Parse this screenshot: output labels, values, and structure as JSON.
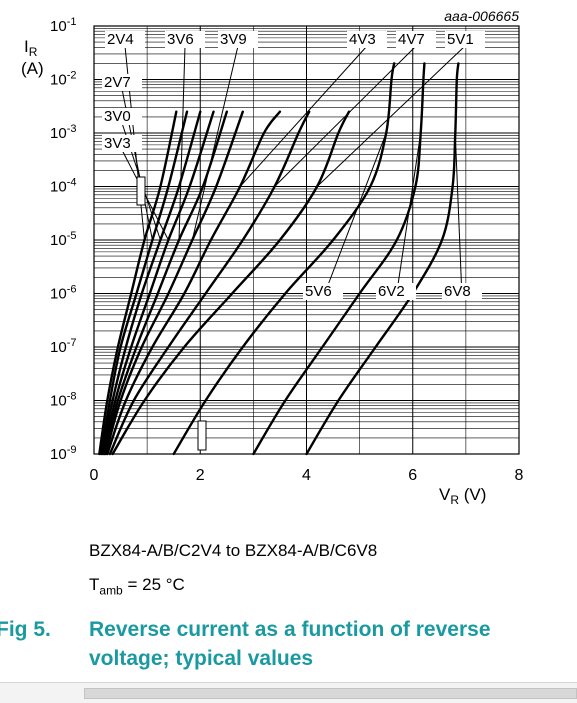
{
  "chart_data": {
    "type": "line",
    "title": "",
    "code": "aaa-006665",
    "ylabel_main": "I",
    "ylabel_sub": "R",
    "ylabel_unit": "(A)",
    "xlabel_main": "V",
    "xlabel_sub": "R",
    "xlabel_unit": " (V)",
    "xlim": [
      0,
      8
    ],
    "ylog": true,
    "ylim": [
      1e-09,
      0.1
    ],
    "xticks": [
      "0",
      "2",
      "4",
      "6",
      "8"
    ],
    "yticks": [
      {
        "base": "10",
        "exp": "-1"
      },
      {
        "base": "10",
        "exp": "-2"
      },
      {
        "base": "10",
        "exp": "-3"
      },
      {
        "base": "10",
        "exp": "-4"
      },
      {
        "base": "10",
        "exp": "-5"
      },
      {
        "base": "10",
        "exp": "-6"
      },
      {
        "base": "10",
        "exp": "-7"
      },
      {
        "base": "10",
        "exp": "-8"
      },
      {
        "base": "10",
        "exp": "-9"
      }
    ],
    "grid": true,
    "series": [
      {
        "name": "2V4",
        "x": [
          0.1,
          0.25,
          0.45,
          0.7,
          0.95,
          1.25,
          1.55
        ],
        "y": [
          1e-09,
          1e-08,
          1e-07,
          1e-06,
          1e-05,
          0.0001,
          0.0025
        ]
      },
      {
        "name": "2V7",
        "x": [
          0.13,
          0.3,
          0.5,
          0.8,
          1.1,
          1.4,
          1.75
        ],
        "y": [
          1e-09,
          1e-08,
          1e-07,
          1e-06,
          1e-05,
          0.0001,
          0.0025
        ]
      },
      {
        "name": "3V0",
        "x": [
          0.15,
          0.35,
          0.6,
          0.9,
          1.25,
          1.6,
          2.0
        ],
        "y": [
          1e-09,
          1e-08,
          1e-07,
          1e-06,
          1e-05,
          0.0001,
          0.0025
        ]
      },
      {
        "name": "3V3",
        "x": [
          0.18,
          0.4,
          0.7,
          1.05,
          1.4,
          1.8,
          2.25
        ],
        "y": [
          1e-09,
          1e-08,
          1e-07,
          1e-06,
          1e-05,
          0.0001,
          0.0025
        ]
      },
      {
        "name": "3V6",
        "x": [
          0.2,
          0.45,
          0.8,
          1.2,
          1.6,
          2.05,
          2.5
        ],
        "y": [
          1e-09,
          1e-08,
          1e-07,
          1e-06,
          1e-05,
          0.0001,
          0.0025
        ]
      },
      {
        "name": "3V9",
        "x": [
          0.22,
          0.5,
          0.9,
          1.4,
          1.85,
          2.3,
          2.8
        ],
        "y": [
          1e-09,
          1e-08,
          1e-07,
          1e-06,
          1e-05,
          0.0001,
          0.0025
        ]
      },
      {
        "name": "4V3",
        "x": [
          0.25,
          0.6,
          1.1,
          1.7,
          2.2,
          2.75,
          3.2,
          3.5
        ],
        "y": [
          1e-09,
          1e-08,
          1e-07,
          1e-06,
          1e-05,
          0.0001,
          0.001,
          0.0025
        ]
      },
      {
        "name": "4V7",
        "x": [
          0.3,
          0.75,
          1.4,
          2.1,
          2.8,
          3.4,
          3.85,
          4.05
        ],
        "y": [
          1e-09,
          1e-08,
          1e-07,
          1e-06,
          1e-05,
          0.0001,
          0.001,
          0.0025
        ]
      },
      {
        "name": "5V1",
        "x": [
          0.35,
          0.95,
          1.7,
          2.6,
          3.5,
          4.2,
          4.6,
          4.8
        ],
        "y": [
          1e-09,
          1e-08,
          1e-07,
          1e-06,
          1e-05,
          0.0001,
          0.001,
          0.0025
        ]
      },
      {
        "name": "5V6",
        "x": [
          1.5,
          2.1,
          2.8,
          3.6,
          4.5,
          5.2,
          5.5,
          5.6,
          5.65
        ],
        "y": [
          1e-09,
          1e-08,
          1e-07,
          1e-06,
          1e-05,
          0.0001,
          0.001,
          0.01,
          0.02
        ]
      },
      {
        "name": "6V2",
        "x": [
          3.0,
          3.6,
          4.3,
          5.0,
          5.7,
          6.05,
          6.15,
          6.2,
          6.22
        ],
        "y": [
          1e-09,
          1e-08,
          1e-07,
          1e-06,
          1e-05,
          0.0001,
          0.001,
          0.01,
          0.02
        ]
      },
      {
        "name": "6V8",
        "x": [
          4.0,
          4.6,
          5.3,
          6.0,
          6.55,
          6.75,
          6.8,
          6.83,
          6.86
        ],
        "y": [
          1e-09,
          1e-08,
          1e-07,
          1e-06,
          1e-05,
          0.0001,
          0.001,
          0.01,
          0.02
        ]
      }
    ]
  },
  "caption": {
    "device": "BZX84-A/B/C2V4 to BZX84-A/B/C6V8",
    "temp_main": "T",
    "temp_sub": "amb",
    "temp_value": " = 25 °C",
    "fig_number": "Fig 5.",
    "fig_title_line1": "Reverse current as a function of reverse",
    "fig_title_line2": "voltage; typical values"
  }
}
